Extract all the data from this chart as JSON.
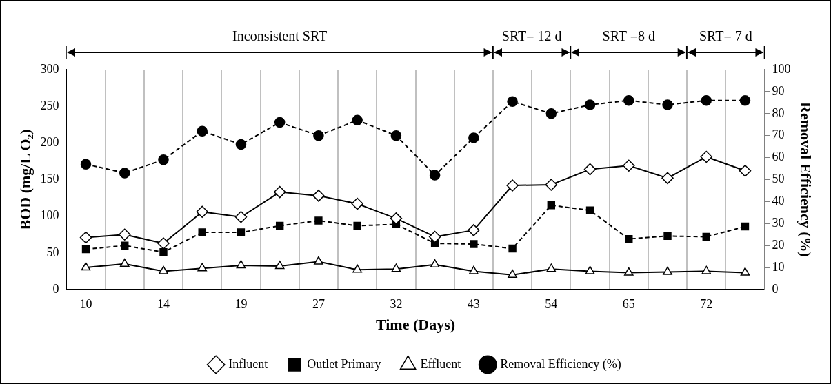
{
  "chart_data": {
    "type": "line",
    "categories": [
      "10",
      null,
      "14",
      null,
      "19",
      null,
      "27",
      null,
      "32",
      null,
      "43",
      null,
      "54",
      null,
      "65",
      null,
      "72",
      null
    ],
    "series": [
      {
        "name": "Influent",
        "color": "#000000",
        "marker": "diamond",
        "line_style": "solid",
        "values": [
          71,
          75,
          63,
          106,
          99,
          133,
          128,
          117,
          97,
          72,
          81,
          142,
          143,
          164,
          169,
          152,
          181,
          162
        ]
      },
      {
        "name": "Outlet Primary",
        "color": "#000000",
        "marker": "square",
        "line_style": "dashed",
        "values": [
          55,
          60,
          51,
          78,
          78,
          87,
          94,
          87,
          89,
          63,
          62,
          56,
          115,
          108,
          69,
          73,
          72,
          86
        ]
      },
      {
        "name": "Effluent",
        "color": "#000000",
        "marker": "triangle",
        "line_style": "solid",
        "values": [
          30,
          35,
          25,
          29,
          33,
          32,
          38,
          27,
          28,
          34,
          25,
          20,
          28,
          25,
          23,
          24,
          25,
          23
        ]
      },
      {
        "name": "Removal Efficiency (%)",
        "color": "#000000",
        "marker": "circle",
        "line_style": "dashed",
        "axis": "y2",
        "values": [
          57,
          53,
          59,
          72,
          66,
          76,
          70,
          77,
          70,
          52,
          69,
          85.5,
          80,
          84,
          86,
          84,
          86,
          86
        ]
      }
    ],
    "xlabel": "Time (Days)",
    "ylabel": "BOD (mg/L O₂)",
    "y2label": "Removal Efficiency (%)",
    "ylim": [
      0,
      300
    ],
    "yticks": [
      0,
      50,
      100,
      150,
      200,
      250,
      300
    ],
    "y2lim": [
      0,
      100
    ],
    "y2ticks": [
      0,
      10,
      20,
      30,
      40,
      50,
      60,
      70,
      80,
      90,
      100
    ],
    "grid": "x",
    "legend": "bottom",
    "annotations": [
      "Inconsistent SRT",
      "SRT= 12 d",
      "SRT =8 d",
      "SRT= 7 d"
    ]
  }
}
